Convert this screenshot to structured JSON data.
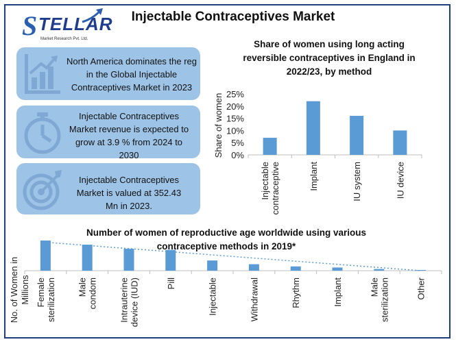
{
  "page": {
    "title": "Injectable Contraceptives Market",
    "logo": {
      "brand": "TELLAR",
      "initial": "S",
      "tagline": "Market Research Pvt. Ltd."
    }
  },
  "cards": [
    {
      "text_lines": [
        "North America dominates the reg",
        "in the Global Injectable",
        "Contraceptives Market in 2023"
      ],
      "icon": "bar-chart-growth-icon"
    },
    {
      "text_lines": [
        "Injectable Contraceptives",
        "Market revenue is expected to",
        "grow at 3.9 % from 2024 to",
        "2030"
      ],
      "icon": "stopwatch-icon"
    },
    {
      "text_lines": [
        "Injectable Contraceptives",
        "Market is valued at 352.43",
        "Mn in 2023."
      ],
      "icon": "target-icon"
    }
  ],
  "colors": {
    "bar": "#5b9bd5",
    "card": "#9dc3e6",
    "frame": "#1c3f7a",
    "trend": "#5b9bd5"
  },
  "chart_data": [
    {
      "type": "bar",
      "title_lines": [
        "Share of women using long acting",
        "reversible contraceptives in England in",
        "2022/23, by method"
      ],
      "ylabel": "Share of women",
      "categories": [
        "Injectable contraceptive",
        "Implant",
        "IU system",
        "IU device"
      ],
      "category_label_lines": [
        [
          "Injectable",
          "contraceptive"
        ],
        [
          "Implant"
        ],
        [
          "IU system"
        ],
        [
          "IU device"
        ]
      ],
      "values": [
        7,
        22,
        16,
        10
      ],
      "ylim": [
        0,
        25
      ],
      "yticks": [
        "0%",
        "5%",
        "10%",
        "15%",
        "20%",
        "25%"
      ],
      "grid": false
    },
    {
      "type": "bar",
      "title_lines": [
        "Number of women of reproductive age worldwide using various",
        "contraceptive methods in 2019*"
      ],
      "ylabel_lines": [
        "No. of Women in",
        "Millions"
      ],
      "categories": [
        "Female sterilization",
        "Male condom",
        "Intrauterine device (IUD)",
        "Pill",
        "Injectable",
        "Withdrawal",
        "Rhythm",
        "Implant",
        "Male sterilization",
        "Other"
      ],
      "category_label_lines": [
        [
          "Female",
          "sterilization"
        ],
        [
          "Male",
          "condom"
        ],
        [
          "Intrauterine",
          "device (IUD)"
        ],
        [
          "Pill"
        ],
        [
          "Injectable"
        ],
        [
          "Withdrawal"
        ],
        [
          "Rhythm"
        ],
        [
          "Implant"
        ],
        [
          "Male",
          "sterilization"
        ],
        [
          "Other"
        ]
      ],
      "values": [
        219,
        189,
        159,
        151,
        74,
        47,
        31,
        23,
        12,
        5
      ],
      "trendline": "linear",
      "grid": false
    }
  ]
}
